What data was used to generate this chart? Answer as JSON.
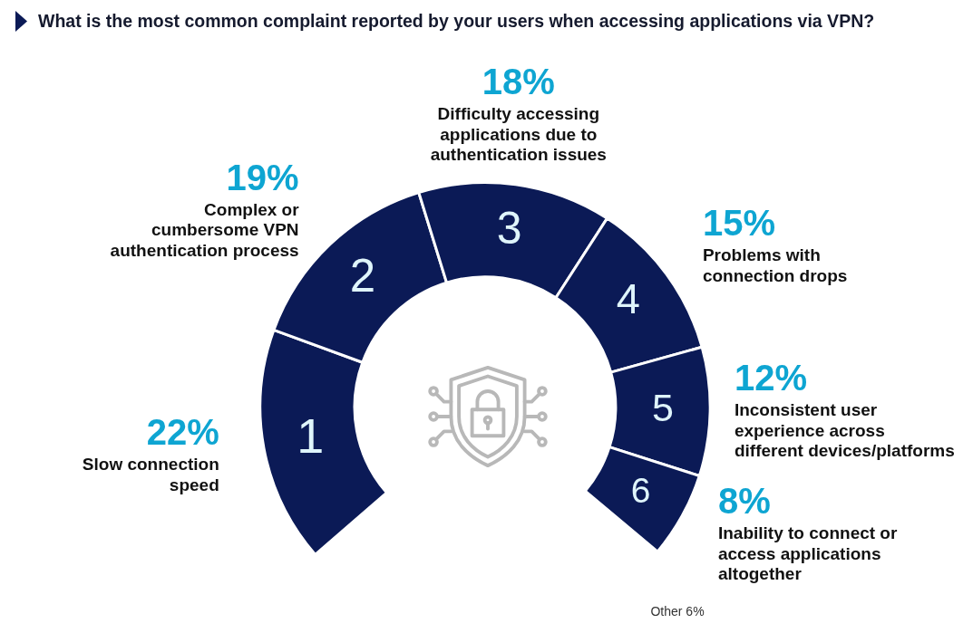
{
  "chart_data": {
    "type": "donut",
    "title": "What is the most common complaint reported by your users when accessing applications via VPN?",
    "categories": [
      "Slow connection speed",
      "Complex or cumbersome VPN authentication process",
      "Difficulty accessing applications due to authentication issues",
      "Problems with connection drops",
      "Inconsistent user experience across different devices/platforms",
      "Inability to connect or access applications altogether"
    ],
    "values": [
      22,
      19,
      18,
      15,
      12,
      8
    ],
    "colors": [
      "#0b1a56",
      "#0b1a56",
      "#0b1a56",
      "#0b1a56",
      "#0b1a56",
      "#0b1a56"
    ],
    "value_labels": [
      "22%",
      "19%",
      "18%",
      "15%",
      "12%",
      "8%"
    ],
    "annotations": [
      {
        "text": "1",
        "x": "Slow connection speed"
      },
      {
        "text": "2",
        "x": "Complex or cumbersome VPN authentication process"
      },
      {
        "text": "3",
        "x": "Difficulty accessing applications due to authentication issues"
      },
      {
        "text": "4",
        "x": "Problems with connection drops"
      },
      {
        "text": "5",
        "x": "Inconsistent user experience across different devices/platforms"
      },
      {
        "text": "6",
        "x": "Inability to connect or access applications altogether"
      },
      "Other 6%"
    ]
  }
}
